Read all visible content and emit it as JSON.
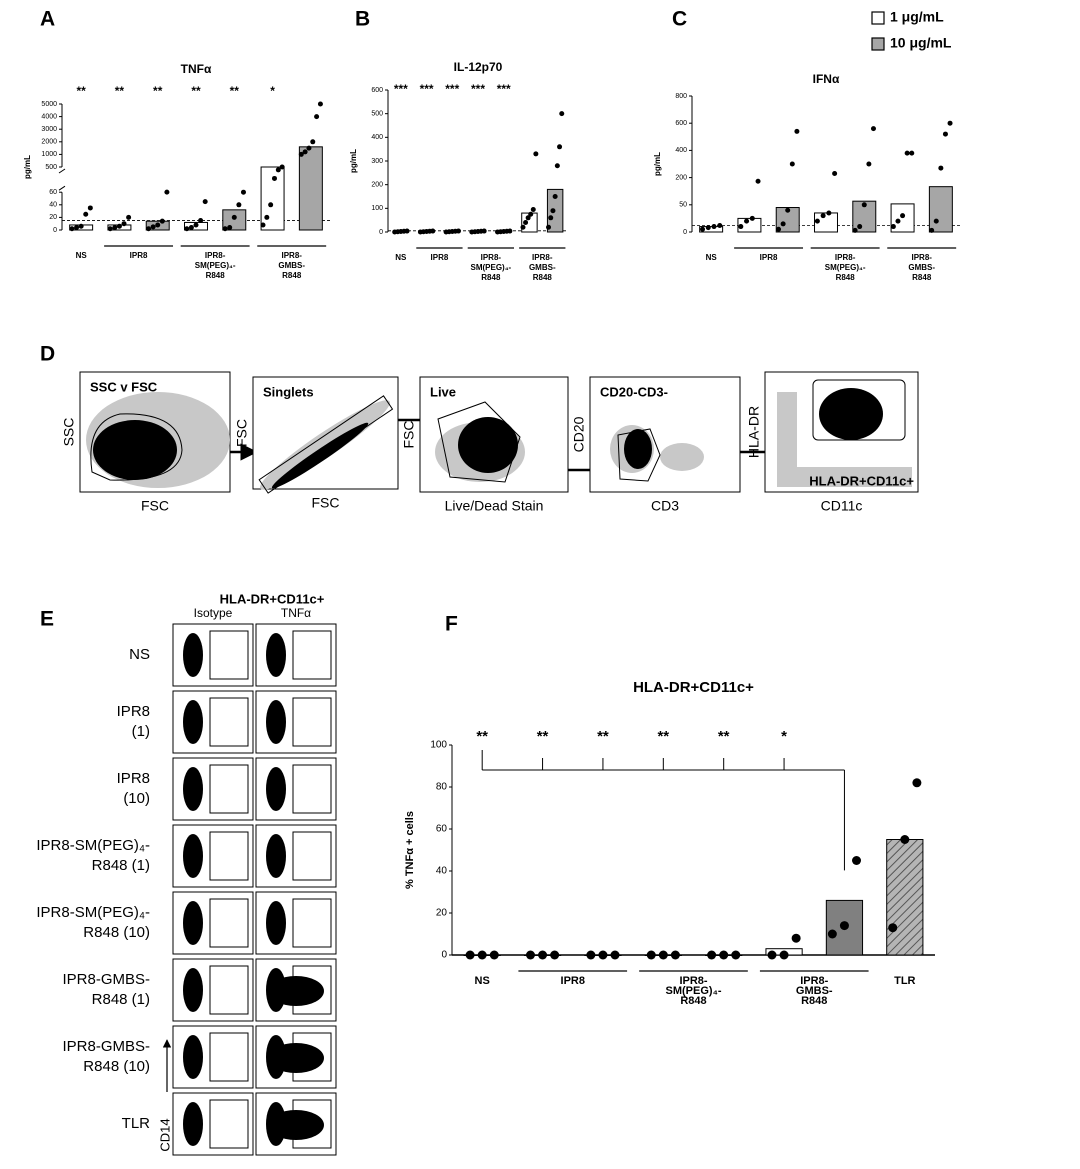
{
  "panel_labels": [
    "A",
    "B",
    "C",
    "D",
    "E",
    "F"
  ],
  "legend": [
    {
      "label": "1 μg/mL",
      "color": "#ffffff"
    },
    {
      "label": "10 μg/mL",
      "color": "#a6a6a6"
    }
  ],
  "chart_data": [
    {
      "type": "bar",
      "title": "TNFα",
      "ylabel": "pg/mL",
      "groups": [
        {
          "lines": [
            "NS"
          ],
          "size": 1
        },
        {
          "lines": [
            "IPR8"
          ],
          "size": 2
        },
        {
          "lines": [
            "IPR8-",
            "SM(PEG)₄-",
            "R848"
          ],
          "size": 2
        },
        {
          "lines": [
            "IPR8-",
            "GMBS-",
            "R848"
          ],
          "size": 2
        }
      ],
      "values": [
        8,
        8,
        14,
        12,
        32,
        500,
        1600
      ],
      "colors": [
        "#ffffff",
        "#ffffff",
        "#a6a6a6",
        "#ffffff",
        "#a6a6a6",
        "#ffffff",
        "#a6a6a6"
      ],
      "annotations": [
        "**",
        "**",
        "**",
        "**",
        "**",
        "*",
        null
      ],
      "points": [
        [
          2,
          4,
          6,
          25,
          35
        ],
        [
          2,
          4,
          6,
          10,
          20
        ],
        [
          2,
          5,
          8,
          14,
          62
        ],
        [
          2,
          4,
          8,
          15,
          45
        ],
        [
          2,
          4,
          20,
          40,
          60
        ],
        [
          8,
          20,
          40,
          300,
          450,
          500
        ],
        [
          1000,
          1200,
          1500,
          2000,
          4000,
          5000
        ]
      ],
      "reference_line": 15,
      "ylim": [
        0,
        5000
      ],
      "yticks": [
        0,
        20,
        40,
        60,
        500,
        1000,
        2000,
        3000,
        4000,
        5000
      ],
      "tick_spacing": "even",
      "ybreak": [
        60,
        500
      ]
    },
    {
      "type": "bar",
      "title": "IL-12p70",
      "ylabel": "pg/mL",
      "groups": [
        {
          "lines": [
            "NS"
          ],
          "size": 1
        },
        {
          "lines": [
            "IPR8"
          ],
          "size": 2
        },
        {
          "lines": [
            "IPR8-",
            "SM(PEG)₄-",
            "R848"
          ],
          "size": 2
        },
        {
          "lines": [
            "IPR8-",
            "GMBS-",
            "R848"
          ],
          "size": 2
        }
      ],
      "values": [
        2,
        2,
        2,
        2,
        2,
        80,
        180
      ],
      "colors": [
        "#ffffff",
        "#ffffff",
        "#a6a6a6",
        "#ffffff",
        "#a6a6a6",
        "#ffffff",
        "#a6a6a6"
      ],
      "annotations": [
        "***",
        "***",
        "***",
        "***",
        "***",
        null,
        null
      ],
      "points": [
        [
          0,
          1,
          2,
          3,
          4
        ],
        [
          0,
          1,
          2,
          3,
          4
        ],
        [
          0,
          1,
          2,
          3,
          4
        ],
        [
          0,
          1,
          2,
          3,
          4
        ],
        [
          0,
          1,
          2,
          3,
          4
        ],
        [
          20,
          40,
          60,
          75,
          95,
          330
        ],
        [
          20,
          60,
          90,
          150,
          280,
          360,
          500
        ]
      ],
      "reference_line": 5,
      "ylim": [
        0,
        600
      ],
      "yticks": [
        0,
        100,
        200,
        300,
        400,
        500,
        600
      ]
    },
    {
      "type": "bar",
      "title": "IFNα",
      "ylabel": "pg/mL",
      "groups": [
        {
          "lines": [
            "NS"
          ],
          "size": 1
        },
        {
          "lines": [
            "IPR8"
          ],
          "size": 2
        },
        {
          "lines": [
            "IPR8-",
            "SM(PEG)₄-",
            "R848"
          ],
          "size": 2
        },
        {
          "lines": [
            "IPR8-",
            "GMBS-",
            "R848"
          ],
          "size": 2
        }
      ],
      "values": [
        10,
        25,
        45,
        35,
        70,
        55,
        150
      ],
      "colors": [
        "#ffffff",
        "#ffffff",
        "#a6a6a6",
        "#ffffff",
        "#a6a6a6",
        "#ffffff",
        "#a6a6a6"
      ],
      "points": [
        [
          5,
          8,
          10,
          12
        ],
        [
          10,
          20,
          25,
          180
        ],
        [
          5,
          15,
          40,
          300,
          540
        ],
        [
          20,
          30,
          35,
          230
        ],
        [
          3,
          10,
          50,
          300,
          560
        ],
        [
          10,
          20,
          30,
          380,
          380
        ],
        [
          3,
          20,
          270,
          520,
          600
        ]
      ],
      "reference_line": 12,
      "ylim": [
        0,
        800
      ],
      "yticks": [
        0,
        50,
        200,
        400,
        600,
        800
      ],
      "tick_spacing": "even"
    },
    {
      "type": "bar",
      "title": "HLA-DR+CD11c+",
      "ylabel": "% TNFα + cells",
      "groups": [
        {
          "lines": [
            "NS"
          ],
          "size": 1
        },
        {
          "lines": [
            "IPR8"
          ],
          "size": 2
        },
        {
          "lines": [
            "IPR8-",
            "SM(PEG)₄-",
            "R848"
          ],
          "size": 2
        },
        {
          "lines": [
            "IPR8-",
            "GMBS-",
            "R848"
          ],
          "size": 2
        },
        {
          "lines": [
            "TLR"
          ],
          "size": 1
        }
      ],
      "values": [
        0,
        0,
        0,
        0,
        0,
        3,
        26,
        55
      ],
      "colors": [
        "#ffffff",
        "#ffffff",
        "#ffffff",
        "#ffffff",
        "#ffffff",
        "#ffffff",
        "#808080",
        "#b5b5b5"
      ],
      "hatched": [
        false,
        false,
        false,
        false,
        false,
        false,
        false,
        true
      ],
      "annotations": [
        "**",
        "**",
        "**",
        "**",
        "**",
        "*",
        null,
        null
      ],
      "comparison_bracket": true,
      "points": [
        [
          0,
          0,
          0
        ],
        [
          0,
          0,
          0
        ],
        [
          0,
          0,
          0
        ],
        [
          0,
          0,
          0
        ],
        [
          0,
          0,
          0
        ],
        [
          0,
          0,
          8
        ],
        [
          10,
          14,
          45
        ],
        [
          13,
          55,
          82
        ]
      ],
      "ylim": [
        0,
        100
      ],
      "yticks": [
        0,
        20,
        40,
        60,
        80,
        100
      ]
    }
  ],
  "gating": [
    {
      "title": "SSC v FSC",
      "x": "FSC",
      "y": "SSC"
    },
    {
      "title": "Singlets",
      "x": "FSC",
      "y": "FSC"
    },
    {
      "title": "Live",
      "x": "Live/Dead Stain",
      "y": "FSC"
    },
    {
      "title": "CD20-CD3-",
      "x": "CD3",
      "y": "CD20"
    },
    {
      "title": "HLA-DR+CD11c+",
      "x": "CD11c",
      "y": "HLA-DR"
    }
  ],
  "flow_grid": {
    "title": "HLA-DR+CD11c+",
    "columns": [
      "Isotype",
      "TNFα"
    ],
    "rows": [
      [
        "NS"
      ],
      [
        "IPR8",
        "(1)"
      ],
      [
        "IPR8",
        "(10)"
      ],
      [
        "IPR8-SM(PEG)₄-",
        "R848 (1)"
      ],
      [
        "IPR8-SM(PEG)₄-",
        "R848 (10)"
      ],
      [
        "IPR8-GMBS-",
        "R848 (1)"
      ],
      [
        "IPR8-GMBS-",
        "R848 (10)"
      ],
      [
        "TLR"
      ]
    ],
    "y_axis": "CD14"
  }
}
